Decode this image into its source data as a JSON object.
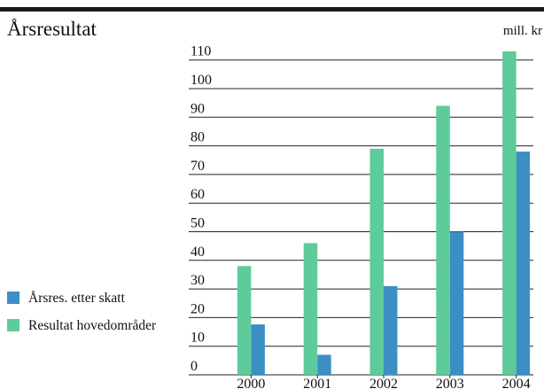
{
  "chart_data": {
    "type": "bar",
    "title": "Årsresultat",
    "unit_label": "mill. kr",
    "categories": [
      "2000",
      "2001",
      "2002",
      "2003",
      "2004"
    ],
    "series": [
      {
        "name": "Årsres. etter skatt",
        "color": "#3b8fc4",
        "values": [
          17.6,
          7,
          31,
          50,
          78
        ]
      },
      {
        "name": "Resultat hovedområder",
        "color": "#5ecb9b",
        "values": [
          38,
          46,
          79,
          94,
          113
        ]
      }
    ],
    "ylim": [
      0,
      110
    ],
    "yticks": [
      0,
      10,
      20,
      30,
      40,
      50,
      60,
      70,
      80,
      90,
      100,
      110
    ],
    "grid": true
  }
}
